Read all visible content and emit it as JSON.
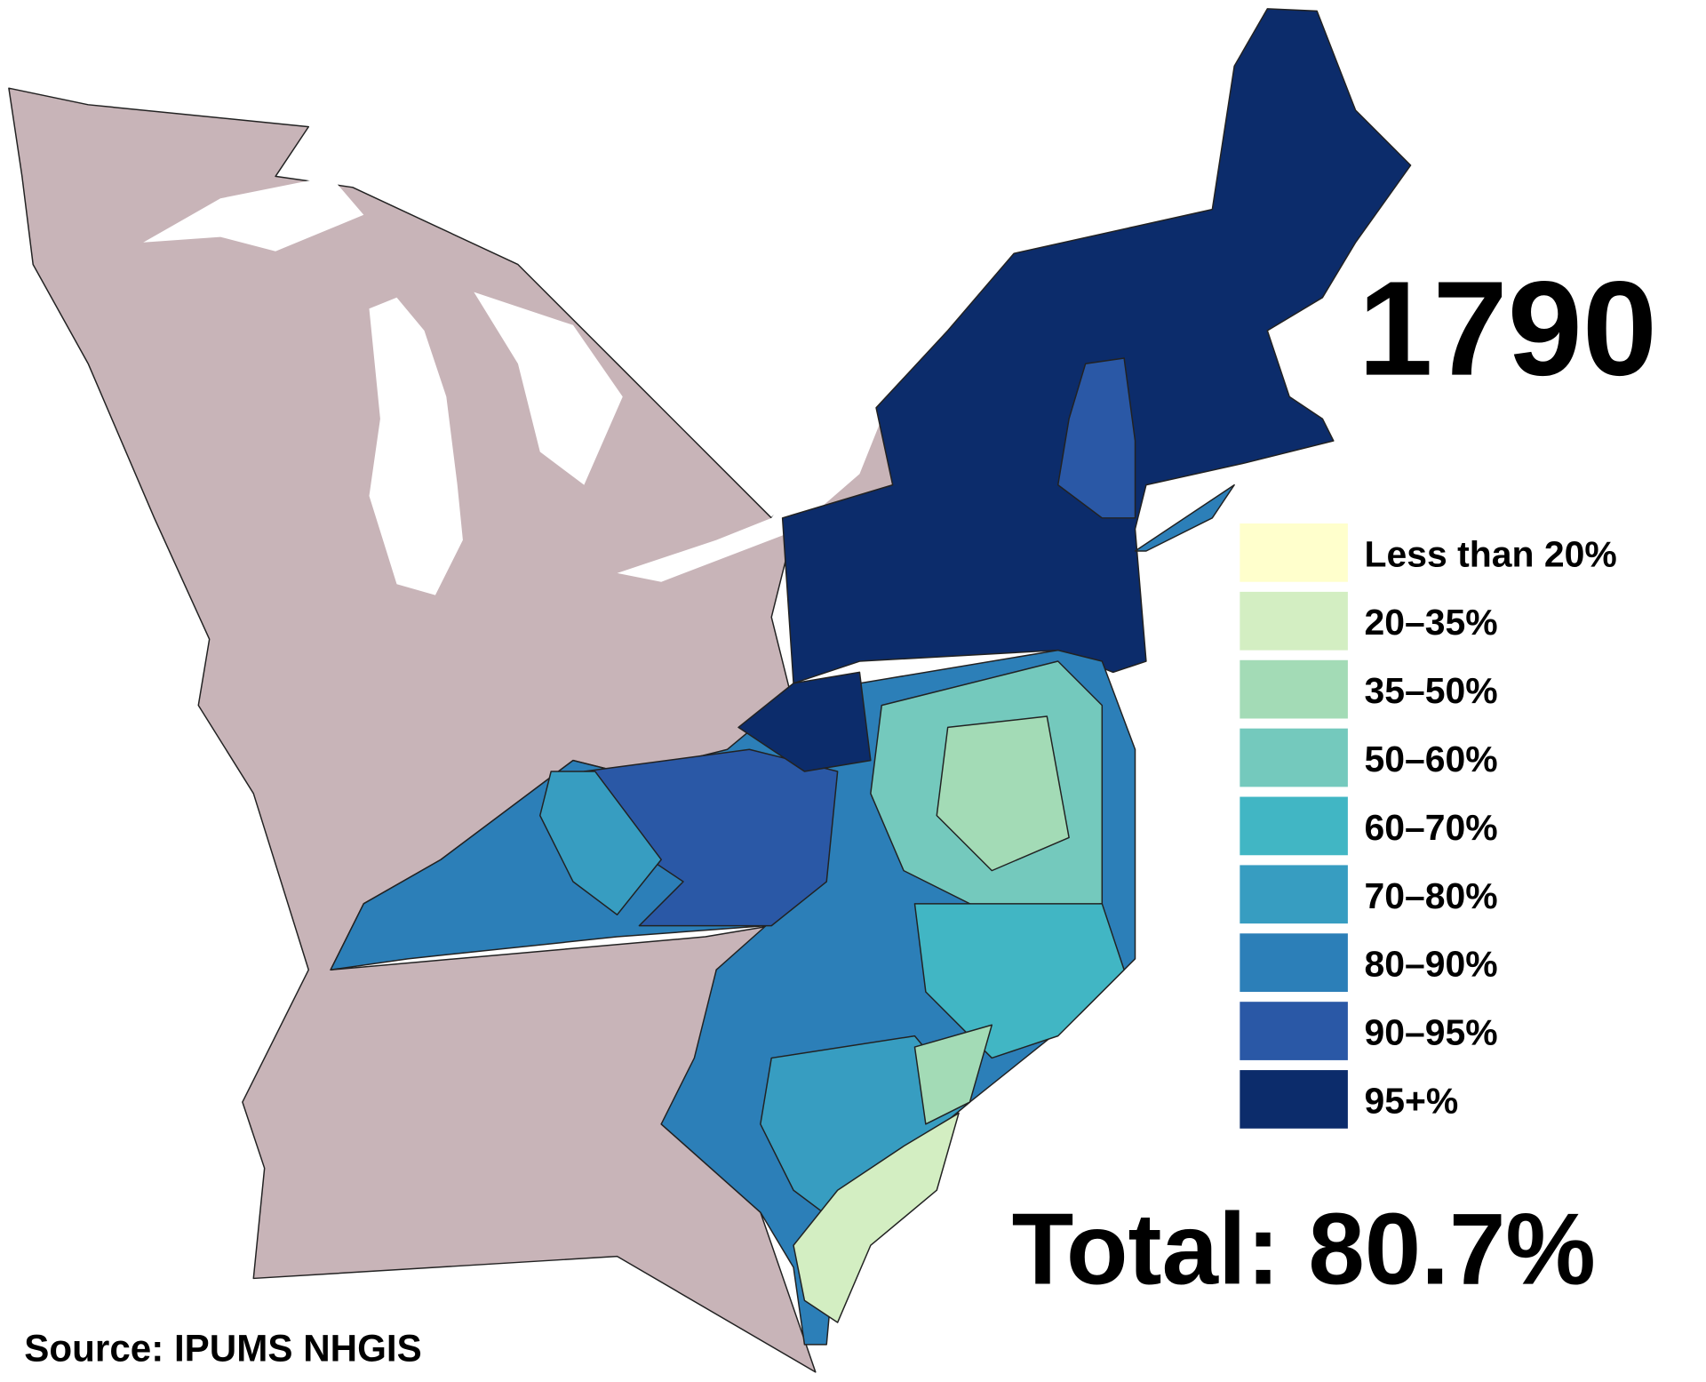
{
  "title": "1790",
  "legend": {
    "items": [
      {
        "label": "Less than 20%",
        "color": "#ffffcc"
      },
      {
        "label": "20–35%",
        "color": "#d3eec2"
      },
      {
        "label": "35–50%",
        "color": "#a3dbb6"
      },
      {
        "label": "50–60%",
        "color": "#74c9bd"
      },
      {
        "label": "60–70%",
        "color": "#41b6c4"
      },
      {
        "label": "70–80%",
        "color": "#379dc1"
      },
      {
        "label": "80–90%",
        "color": "#2c7fb8"
      },
      {
        "label": "90–95%",
        "color": "#2a58a6"
      },
      {
        "label": "95+%",
        "color": "#0c2c6b"
      }
    ]
  },
  "total": "Total: 80.7%",
  "source": "Source: IPUMS NHGIS"
}
